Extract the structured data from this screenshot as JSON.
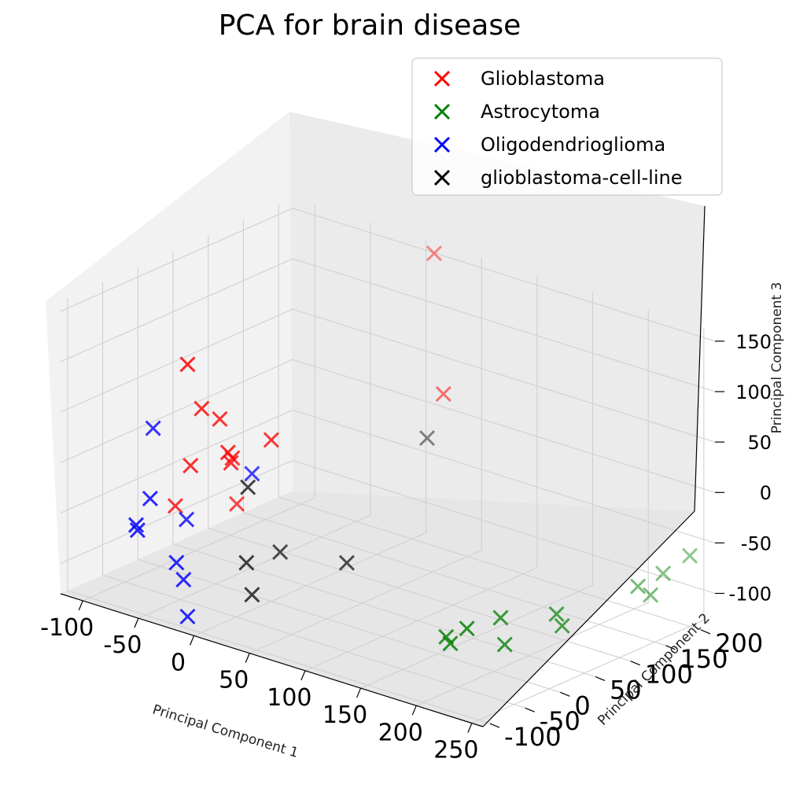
{
  "chart_data": {
    "type": "scatter",
    "projection": "3d",
    "title": "PCA for brain disease",
    "xlabel": "Principal Component 1",
    "ylabel": "Principal Component 2",
    "zlabel": "Principal Component 3",
    "xlim": [
      -120,
      260
    ],
    "ylim": [
      -110,
      220
    ],
    "zlim": [
      -130,
      160
    ],
    "xticks": [
      -100,
      -50,
      0,
      50,
      100,
      150,
      200,
      250
    ],
    "yticks": [
      -100,
      -50,
      0,
      50,
      100,
      150,
      200
    ],
    "zticks": [
      -100,
      -50,
      0,
      50,
      100,
      150
    ],
    "grid": true,
    "legend": "top-right",
    "marker": "x",
    "series": [
      {
        "name": "Glioblastoma",
        "color": "#ff0000",
        "points": [
          [
            -50,
            -40,
            100
          ],
          [
            20,
            200,
            160
          ],
          [
            -50,
            -20,
            50
          ],
          [
            -40,
            -10,
            40
          ],
          [
            -20,
            -30,
            20
          ],
          [
            -30,
            -10,
            0
          ],
          [
            -60,
            -20,
            -10
          ],
          [
            -35,
            0,
            0
          ],
          [
            -80,
            -10,
            -60
          ],
          [
            -50,
            30,
            -60
          ],
          [
            60,
            150,
            50
          ],
          [
            0,
            0,
            30
          ]
        ]
      },
      {
        "name": "Astrocytoma",
        "color": "#008000",
        "points": [
          [
            170,
            -20,
            -100
          ],
          [
            180,
            -30,
            -100
          ],
          [
            195,
            -30,
            -80
          ],
          [
            200,
            10,
            -80
          ],
          [
            210,
            0,
            -100
          ],
          [
            225,
            50,
            -80
          ],
          [
            230,
            50,
            -90
          ],
          [
            235,
            150,
            -80
          ],
          [
            240,
            160,
            -90
          ],
          [
            250,
            200,
            -60
          ],
          [
            245,
            170,
            -70
          ]
        ]
      },
      {
        "name": "Oligodendrioglioma",
        "color": "#0000ff",
        "points": [
          [
            -100,
            -10,
            10
          ],
          [
            -90,
            -30,
            -50
          ],
          [
            -90,
            -50,
            -70
          ],
          [
            -95,
            -40,
            -80
          ],
          [
            -60,
            -40,
            -100
          ],
          [
            -50,
            -40,
            -150
          ],
          [
            -70,
            -10,
            -70
          ],
          [
            -30,
            20,
            -20
          ],
          [
            -60,
            -30,
            -120
          ]
        ]
      },
      {
        "name": "glioblastoma-cell-line",
        "color": "#000000",
        "points": [
          [
            -40,
            30,
            -40
          ],
          [
            -35,
            20,
            -110
          ],
          [
            -30,
            20,
            -140
          ],
          [
            -30,
            60,
            -110
          ],
          [
            30,
            60,
            -100
          ],
          [
            20,
            190,
            -20
          ]
        ]
      }
    ]
  }
}
